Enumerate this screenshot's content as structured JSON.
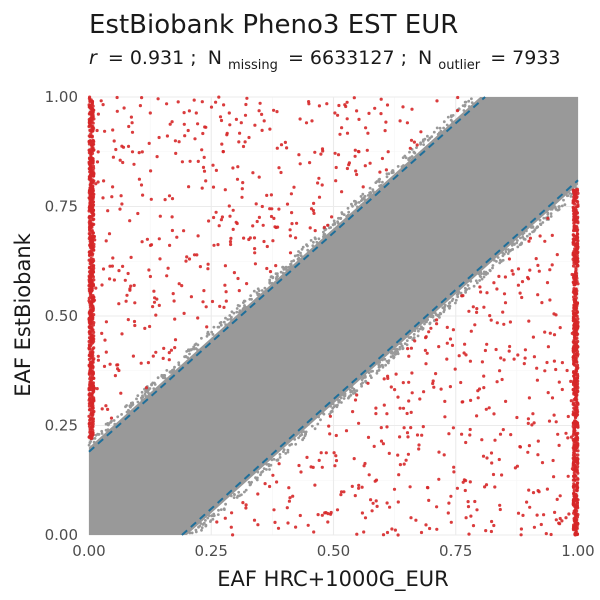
{
  "chart_data": {
    "type": "scatter",
    "title": "EstBiobank Pheno3 EST EUR",
    "subtitle": {
      "r_label": "r",
      "r_value": "= 0.931 ;",
      "n_missing_base": "N",
      "n_missing_sub": "missing",
      "n_missing_value": "= 6633127 ;",
      "n_outlier_base": "N",
      "n_outlier_sub": "outlier",
      "n_outlier_value": "= 7933"
    },
    "xlabel": "EAF HRC+1000G_EUR",
    "ylabel": "EAF EstBiobank",
    "xlim": [
      0,
      1
    ],
    "ylim": [
      0,
      1
    ],
    "x_ticks": [
      0,
      0.25,
      0.5,
      0.75,
      1
    ],
    "x_tick_labels": [
      "0.00",
      "0.25",
      "0.50",
      "0.75",
      "1.00"
    ],
    "y_ticks": [
      0,
      0.25,
      0.5,
      0.75,
      1
    ],
    "y_tick_labels": [
      "0.00",
      "0.25",
      "0.50",
      "0.75",
      "1.00"
    ],
    "grid": true,
    "series": [
      {
        "role": "non-outlier",
        "color": "#999999",
        "band_lines": {
          "upper": {
            "slope": 1,
            "intercept": 0.2
          },
          "lower": {
            "slope": 1,
            "intercept": -0.2
          }
        }
      },
      {
        "role": "outlier",
        "color": "#d62728",
        "clusters": [
          {
            "x": [
              0,
              0.01
            ],
            "y": [
              0.22,
              1.0
            ]
          },
          {
            "x": [
              0.99,
              1.0
            ],
            "y": [
              0,
              0.79
            ]
          }
        ]
      }
    ],
    "reference_lines": [
      {
        "slope": 1,
        "intercept": 0.19,
        "style": "dashed",
        "color": "#1f6f9a"
      },
      {
        "slope": 1,
        "intercept": -0.19,
        "style": "dashed",
        "color": "#1f6f9a"
      }
    ]
  }
}
